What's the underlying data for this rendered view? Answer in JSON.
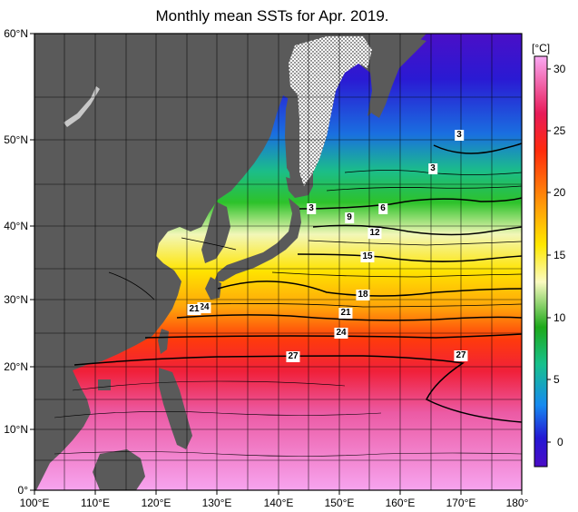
{
  "title": "Monthly mean SSTs for Apr. 2019.",
  "unit": "[°C]",
  "lat_labels": [
    "60°N",
    "50°N",
    "40°N",
    "30°N",
    "20°N",
    "10°N",
    "0°"
  ],
  "lon_labels": [
    "100°E",
    "110°E",
    "120°E",
    "130°E",
    "140°E",
    "150°E",
    "160°E",
    "170°E",
    "180°"
  ],
  "colorbar_labels": [
    "30",
    "25",
    "20",
    "15",
    "10",
    "5",
    "0"
  ],
  "isotherm_labels": [
    "3",
    "3",
    "3",
    "6",
    "9",
    "12",
    "15",
    "18",
    "21",
    "24",
    "24",
    "21",
    "27",
    "27"
  ],
  "colorbar_colors": [
    "#f9a8f3",
    "#e80f58",
    "#ff2b0c",
    "#ff9a08",
    "#ffe800",
    "#fbfbb8",
    "#1ea91a",
    "#17c18c",
    "#168af0",
    "#2418d4",
    "#4b0cc6"
  ],
  "colors": {
    "land": "#5a5a5a",
    "sea_ice": "#ffffff",
    "grid": "#000000"
  }
}
